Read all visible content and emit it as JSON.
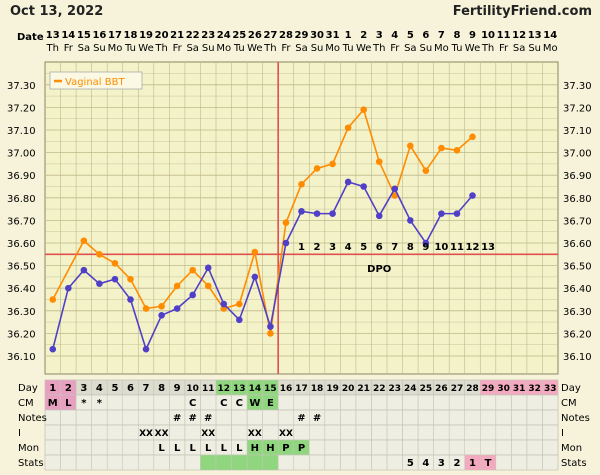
{
  "header": {
    "date": "Oct 13, 2022",
    "site": "FertilityFriend.com"
  },
  "row_labels": {
    "date": "Date",
    "day": "Day",
    "cm": "CM",
    "notes": "Notes",
    "i": "I",
    "mon": "Mon",
    "stats": "Stats"
  },
  "dates": [
    "13",
    "14",
    "15",
    "16",
    "17",
    "18",
    "19",
    "20",
    "21",
    "22",
    "23",
    "24",
    "25",
    "26",
    "27",
    "28",
    "29",
    "30",
    "31",
    "1",
    "2",
    "3",
    "4",
    "5",
    "6",
    "7",
    "8",
    "9",
    "10",
    "11",
    "12",
    "13",
    "14"
  ],
  "weekdays": [
    "Th",
    "Fr",
    "Sa",
    "Su",
    "Mo",
    "Tu",
    "We",
    "Th",
    "Fr",
    "Sa",
    "Su",
    "Mo",
    "Tu",
    "We",
    "Th",
    "Fr",
    "Sa",
    "Su",
    "Mo",
    "Tu",
    "We",
    "Th",
    "Fr",
    "Sa",
    "Su",
    "Mo",
    "Tu",
    "We",
    "Th",
    "Fr",
    "Sa",
    "Su",
    "Mo"
  ],
  "days": [
    "1",
    "2",
    "3",
    "4",
    "5",
    "6",
    "7",
    "8",
    "9",
    "10",
    "11",
    "12",
    "13",
    "14",
    "15",
    "16",
    "17",
    "18",
    "19",
    "20",
    "21",
    "22",
    "23",
    "24",
    "25",
    "26",
    "27",
    "28",
    "29",
    "30",
    "31",
    "32",
    "33"
  ],
  "cm": [
    "M",
    "L",
    "*",
    "*",
    "",
    "",
    "",
    "",
    "",
    "C",
    "",
    "C",
    "C",
    "W",
    "E",
    "",
    "",
    "",
    "",
    "",
    "",
    "",
    "",
    "",
    "",
    "",
    "",
    "",
    "",
    "",
    "",
    "",
    ""
  ],
  "notes": [
    "",
    "",
    "",
    "",
    "",
    "",
    "",
    "",
    "#",
    "#",
    "#",
    "",
    "",
    "",
    "",
    "",
    "#",
    "#",
    "",
    "",
    "",
    "",
    "",
    "",
    "",
    "",
    "",
    "",
    "",
    "",
    "",
    "",
    ""
  ],
  "intercourse": [
    "",
    "",
    "",
    "",
    "",
    "",
    "XX",
    "XX",
    "",
    "",
    "XX",
    "",
    "",
    "XX",
    "",
    "XX",
    "",
    "",
    "",
    "",
    "",
    "",
    "",
    "",
    "",
    "",
    "",
    "",
    "",
    "",
    "",
    "",
    ""
  ],
  "mon": [
    "",
    "",
    "",
    "",
    "",
    "",
    "",
    "L",
    "L",
    "L",
    "L",
    "L",
    "L",
    "H",
    "H",
    "P",
    "P",
    "",
    "",
    "",
    "",
    "",
    "",
    "",
    "",
    "",
    "",
    "",
    "",
    "",
    "",
    "",
    ""
  ],
  "stats": [
    "",
    "",
    "",
    "",
    "",
    "",
    "",
    "",
    "",
    "",
    "",
    "",
    "",
    "",
    "",
    "",
    "",
    "",
    "",
    "",
    "",
    "",
    "",
    "5",
    "4",
    "3",
    "2",
    "1",
    "T",
    "",
    "",
    "",
    ""
  ],
  "colors": {
    "bg": "#f6f3da",
    "plot_bg": "#f4f2c8",
    "grid": "#bdb98a",
    "orange": "#ff8c00",
    "purple": "#5040c8",
    "red": "#e05050",
    "green": "#8fd67f",
    "pink": "#f3a9bf",
    "menses": "#e8a0c0"
  },
  "chart_data": {
    "type": "line",
    "legend": "Vaginal BBT",
    "legend_position": "top-left",
    "ylim": [
      36.05,
      37.38
    ],
    "yticks": [
      "37.30",
      "37.20",
      "37.10",
      "37.00",
      "36.90",
      "36.80",
      "36.70",
      "36.60",
      "36.50",
      "36.40",
      "36.30",
      "36.20",
      "36.10"
    ],
    "grid": true,
    "series": [
      {
        "name": "Vaginal BBT",
        "color": "#ff8c00",
        "values": [
          36.35,
          null,
          36.61,
          36.55,
          36.51,
          36.44,
          36.31,
          36.32,
          36.41,
          36.48,
          36.41,
          36.31,
          36.33,
          36.56,
          36.2,
          36.69,
          36.86,
          36.93,
          36.95,
          37.11,
          37.19,
          36.96,
          36.81,
          37.03,
          36.92,
          37.02,
          37.01,
          37.07
        ]
      },
      {
        "values": [
          36.13,
          36.4,
          36.48,
          36.42,
          36.44,
          36.35,
          36.13,
          36.28,
          36.31,
          36.37,
          36.49,
          36.33,
          36.26,
          36.45,
          36.23,
          36.6,
          36.74,
          36.73,
          36.73,
          36.87,
          36.85,
          36.72,
          36.84,
          36.7,
          36.6,
          36.73,
          36.73,
          36.81
        ]
      }
    ],
    "coverline": 36.55,
    "ovulation_day": 15,
    "dpo_numbers": [
      "1",
      "2",
      "3",
      "4",
      "5",
      "6",
      "7",
      "8",
      "9",
      "10",
      "11",
      "12",
      "13"
    ],
    "dpo_label": "DPO"
  }
}
